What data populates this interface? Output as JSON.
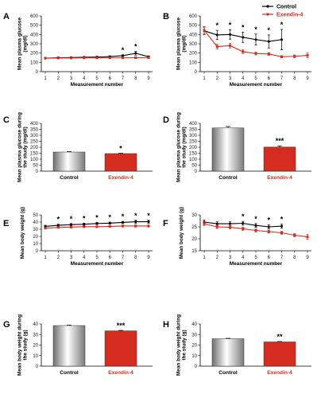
{
  "chart_data": [
    {
      "panel": "A",
      "type": "line",
      "xlabel": "Measurement number",
      "ylabel": "Mean plasma glucose (mg/dl)",
      "ylim": [
        0,
        600
      ],
      "yticks": [
        0,
        100,
        200,
        300,
        400,
        500,
        600
      ],
      "x": [
        1,
        2,
        3,
        4,
        5,
        6,
        7,
        8,
        9
      ],
      "xticks": [
        "1",
        "2",
        "3",
        "4",
        "5",
        "6",
        "7",
        "8",
        "9"
      ],
      "series": [
        {
          "name": "Control",
          "color": "#000000",
          "values": [
            145,
            150,
            152,
            155,
            157,
            162,
            172,
            198,
            160
          ],
          "err": [
            8,
            8,
            8,
            8,
            8,
            8,
            10,
            20,
            10
          ]
        },
        {
          "name": "Exendin-4",
          "color": "#d62b1f",
          "values": [
            145,
            146,
            147,
            148,
            148,
            149,
            149,
            150,
            150
          ],
          "err": [
            6,
            6,
            6,
            6,
            6,
            6,
            6,
            6,
            6
          ]
        }
      ],
      "stars": [
        {
          "x": 7,
          "text": "*"
        },
        {
          "x": 8,
          "text": "*"
        }
      ]
    },
    {
      "panel": "B",
      "type": "line",
      "xlabel": "Measurement number",
      "ylabel": "Mean plasma glucose (mg/dl)",
      "ylim": [
        0,
        600
      ],
      "yticks": [
        0,
        100,
        200,
        300,
        400,
        500,
        600
      ],
      "x": [
        1,
        2,
        3,
        4,
        5,
        6,
        7,
        8,
        9
      ],
      "xticks": [
        "1",
        "2",
        "3",
        "4",
        "5",
        "6",
        "7",
        "8",
        "9"
      ],
      "legend": "top-right",
      "series": [
        {
          "name": "Control",
          "color": "#000000",
          "x": [
            1,
            2,
            3,
            4,
            5,
            6,
            7
          ],
          "values": [
            440,
            395,
            400,
            370,
            345,
            325,
            345
          ],
          "err": [
            40,
            50,
            50,
            55,
            60,
            70,
            110
          ]
        },
        {
          "name": "Exendin-4",
          "color": "#d62b1f",
          "x": [
            1,
            2,
            3,
            4,
            5,
            6,
            7,
            8,
            9
          ],
          "values": [
            445,
            270,
            280,
            215,
            195,
            190,
            160,
            165,
            175
          ],
          "err": [
            40,
            25,
            25,
            20,
            15,
            15,
            12,
            15,
            25
          ]
        }
      ],
      "stars": [
        {
          "x": 2,
          "text": "*"
        },
        {
          "x": 3,
          "text": "*"
        },
        {
          "x": 4,
          "text": "*"
        },
        {
          "x": 5,
          "text": "*"
        },
        {
          "x": 6,
          "text": "*"
        },
        {
          "x": 7,
          "text": "*"
        }
      ]
    },
    {
      "panel": "C",
      "type": "bar",
      "ylabel": "Mean plasma glucose during the study (mg/dl)",
      "ylim": [
        0,
        400
      ],
      "yticks": [
        0,
        50,
        100,
        150,
        200,
        250,
        300,
        350,
        400
      ],
      "categories": [
        "Control",
        "Exendin-4"
      ],
      "values": [
        160,
        147
      ],
      "err": [
        4,
        3
      ],
      "colors": [
        "#d9d9d9",
        "#d62b1f"
      ],
      "stars": [
        {
          "bar": 1,
          "text": "*"
        }
      ]
    },
    {
      "panel": "D",
      "type": "bar",
      "ylabel": "Mean plasma glucose during the study (mg/dl)",
      "ylim": [
        0,
        400
      ],
      "yticks": [
        0,
        50,
        100,
        150,
        200,
        250,
        300,
        350,
        400
      ],
      "categories": [
        "Control",
        "Exendin-4"
      ],
      "values": [
        362,
        202
      ],
      "err": [
        12,
        10
      ],
      "colors": [
        "#d9d9d9",
        "#d62b1f"
      ],
      "stars": [
        {
          "bar": 1,
          "text": "***"
        }
      ]
    },
    {
      "panel": "E",
      "type": "line",
      "xlabel": "Measurement number",
      "ylabel": "Mean body weight (g)",
      "ylim": [
        0,
        50
      ],
      "yticks": [
        0,
        10,
        20,
        30,
        40,
        50
      ],
      "x": [
        1,
        2,
        3,
        4,
        5,
        6,
        7,
        8,
        9
      ],
      "xticks": [
        "1",
        "2",
        "3",
        "4",
        "5",
        "6",
        "7",
        "8",
        "9"
      ],
      "series": [
        {
          "name": "Control",
          "color": "#000000",
          "values": [
            34,
            35.5,
            36.5,
            37,
            38,
            38.5,
            39.5,
            40.5,
            40.5
          ],
          "err": [
            1.5,
            1.5,
            1.5,
            1.5,
            1.5,
            1.5,
            1.5,
            2,
            2
          ]
        },
        {
          "name": "Exendin-4",
          "color": "#d62b1f",
          "values": [
            31.5,
            32.5,
            33,
            33.5,
            33.5,
            34,
            34.5,
            34.5,
            34.5
          ],
          "err": [
            1,
            1,
            1,
            1,
            1,
            1,
            1.5,
            1.5,
            1.5
          ]
        }
      ],
      "stars": [
        {
          "x": 2,
          "text": "*"
        },
        {
          "x": 3,
          "text": "*"
        },
        {
          "x": 4,
          "text": "*"
        },
        {
          "x": 5,
          "text": "*"
        },
        {
          "x": 6,
          "text": "*"
        },
        {
          "x": 7,
          "text": "*"
        },
        {
          "x": 8,
          "text": "*"
        },
        {
          "x": 9,
          "text": "*"
        }
      ]
    },
    {
      "panel": "F",
      "type": "line",
      "xlabel": "Measurement number",
      "ylabel": "Mean body weight (g)",
      "ylim": [
        15,
        30
      ],
      "yticks": [
        15,
        20,
        25,
        30
      ],
      "x": [
        1,
        2,
        3,
        4,
        5,
        6,
        7,
        8,
        9
      ],
      "xticks": [
        "1",
        "2",
        "3",
        "4",
        "5",
        "6",
        "7",
        "8",
        "9"
      ],
      "series": [
        {
          "name": "Control",
          "color": "#000000",
          "x": [
            1,
            2,
            3,
            4,
            5,
            6,
            7
          ],
          "values": [
            27,
            26.3,
            26.3,
            26.5,
            25.6,
            25,
            25.3
          ],
          "err": [
            0.8,
            0.8,
            0.8,
            0.8,
            0.8,
            0.8,
            0.8
          ]
        },
        {
          "name": "Exendin-4",
          "color": "#d62b1f",
          "x": [
            1,
            2,
            3,
            4,
            5,
            6,
            7,
            8,
            9
          ],
          "values": [
            26.3,
            25,
            24.8,
            24.2,
            23.5,
            23,
            22.5,
            21.5,
            20.8
          ],
          "err": [
            0.8,
            0.7,
            0.7,
            0.7,
            0.6,
            0.6,
            0.6,
            0.7,
            1
          ]
        }
      ],
      "stars": [
        {
          "x": 4,
          "text": "*"
        },
        {
          "x": 5,
          "text": "*"
        },
        {
          "x": 6,
          "text": "*"
        },
        {
          "x": 7,
          "text": "*"
        }
      ]
    },
    {
      "panel": "G",
      "type": "bar",
      "ylabel": "Mean body weight during the study (g)",
      "ylim": [
        0,
        40
      ],
      "yticks": [
        0,
        10,
        20,
        30,
        40
      ],
      "categories": [
        "Control",
        "Exendin-4"
      ],
      "values": [
        38.5,
        33.5
      ],
      "err": [
        0.5,
        0.4
      ],
      "colors": [
        "#d9d9d9",
        "#d62b1f"
      ],
      "stars": [
        {
          "bar": 1,
          "text": "***"
        }
      ]
    },
    {
      "panel": "H",
      "type": "bar",
      "ylabel": "Mean body weight during the study (g)",
      "ylim": [
        0,
        40
      ],
      "yticks": [
        0,
        10,
        20,
        30,
        40
      ],
      "categories": [
        "Control",
        "Exendin-4"
      ],
      "values": [
        26,
        23
      ],
      "err": [
        0.4,
        0.4
      ],
      "colors": [
        "#d9d9d9",
        "#d62b1f"
      ],
      "stars": [
        {
          "bar": 1,
          "text": "**"
        }
      ]
    }
  ]
}
